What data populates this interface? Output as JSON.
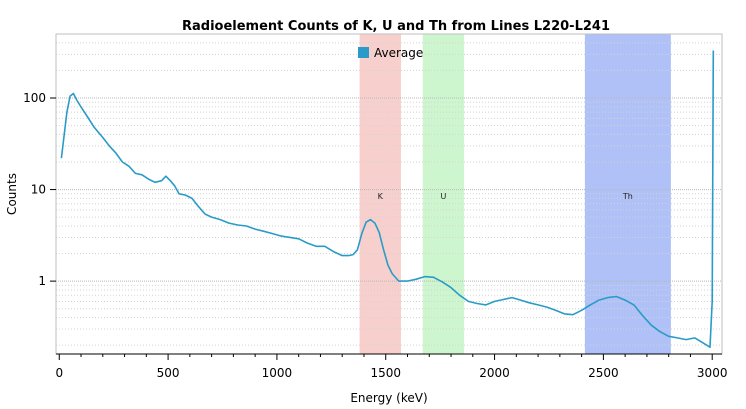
{
  "chart_data": {
    "type": "line",
    "title": "Radioelement Counts of K, U and Th from Lines L220-L241",
    "xlabel": "Energy (keV)",
    "ylabel": "Counts",
    "xlim": [
      -15,
      3045
    ],
    "ylim": [
      0.16,
      500
    ],
    "yscale": "log",
    "x_ticks": [
      0,
      500,
      1000,
      1500,
      2000,
      2500,
      3000
    ],
    "y_ticks": [
      {
        "value": 1,
        "label": "1"
      },
      {
        "value": 10,
        "label": "10"
      },
      {
        "value": 100,
        "label": "100"
      }
    ],
    "grid": true,
    "legend": {
      "position": "top-center",
      "entries": [
        "Average"
      ]
    },
    "bands": [
      {
        "label": "K",
        "x_start": 1380,
        "x_end": 1570,
        "color": "#f4bcb8"
      },
      {
        "label": "U",
        "x_start": 1670,
        "x_end": 1860,
        "color": "#b9f2b9"
      },
      {
        "label": "Th",
        "x_start": 2415,
        "x_end": 2810,
        "color": "#8da7f2"
      }
    ],
    "series": [
      {
        "name": "Average",
        "color": "#2a9bc8",
        "x": [
          10,
          20,
          35,
          50,
          65,
          80,
          100,
          130,
          160,
          200,
          230,
          260,
          290,
          320,
          350,
          380,
          410,
          440,
          470,
          490,
          510,
          530,
          550,
          580,
          610,
          640,
          670,
          700,
          740,
          780,
          820,
          860,
          900,
          940,
          980,
          1020,
          1060,
          1100,
          1140,
          1180,
          1220,
          1260,
          1300,
          1330,
          1350,
          1370,
          1390,
          1410,
          1430,
          1450,
          1470,
          1490,
          1510,
          1530,
          1560,
          1600,
          1640,
          1680,
          1720,
          1760,
          1800,
          1840,
          1880,
          1920,
          1960,
          2000,
          2040,
          2080,
          2120,
          2160,
          2200,
          2240,
          2280,
          2320,
          2360,
          2400,
          2440,
          2480,
          2520,
          2560,
          2600,
          2640,
          2680,
          2720,
          2760,
          2800,
          2840,
          2880,
          2920,
          2960,
          2990,
          3000,
          3005
        ],
        "y": [
          22,
          35,
          70,
          105,
          112,
          95,
          80,
          62,
          48,
          37,
          30,
          25,
          20,
          18,
          15,
          14.5,
          13,
          12,
          12.5,
          14,
          12.5,
          11,
          9,
          8.7,
          8,
          6.5,
          5.4,
          5.0,
          4.7,
          4.3,
          4.1,
          4.0,
          3.7,
          3.5,
          3.3,
          3.1,
          3.0,
          2.9,
          2.6,
          2.4,
          2.4,
          2.1,
          1.9,
          1.9,
          1.95,
          2.2,
          3.3,
          4.4,
          4.7,
          4.3,
          3.4,
          2.2,
          1.5,
          1.2,
          1.0,
          1.0,
          1.05,
          1.12,
          1.1,
          0.98,
          0.85,
          0.7,
          0.6,
          0.57,
          0.55,
          0.6,
          0.63,
          0.66,
          0.62,
          0.58,
          0.55,
          0.52,
          0.48,
          0.44,
          0.43,
          0.48,
          0.55,
          0.62,
          0.66,
          0.68,
          0.62,
          0.55,
          0.42,
          0.33,
          0.28,
          0.25,
          0.24,
          0.23,
          0.24,
          0.21,
          0.19,
          0.6,
          330
        ]
      }
    ]
  }
}
